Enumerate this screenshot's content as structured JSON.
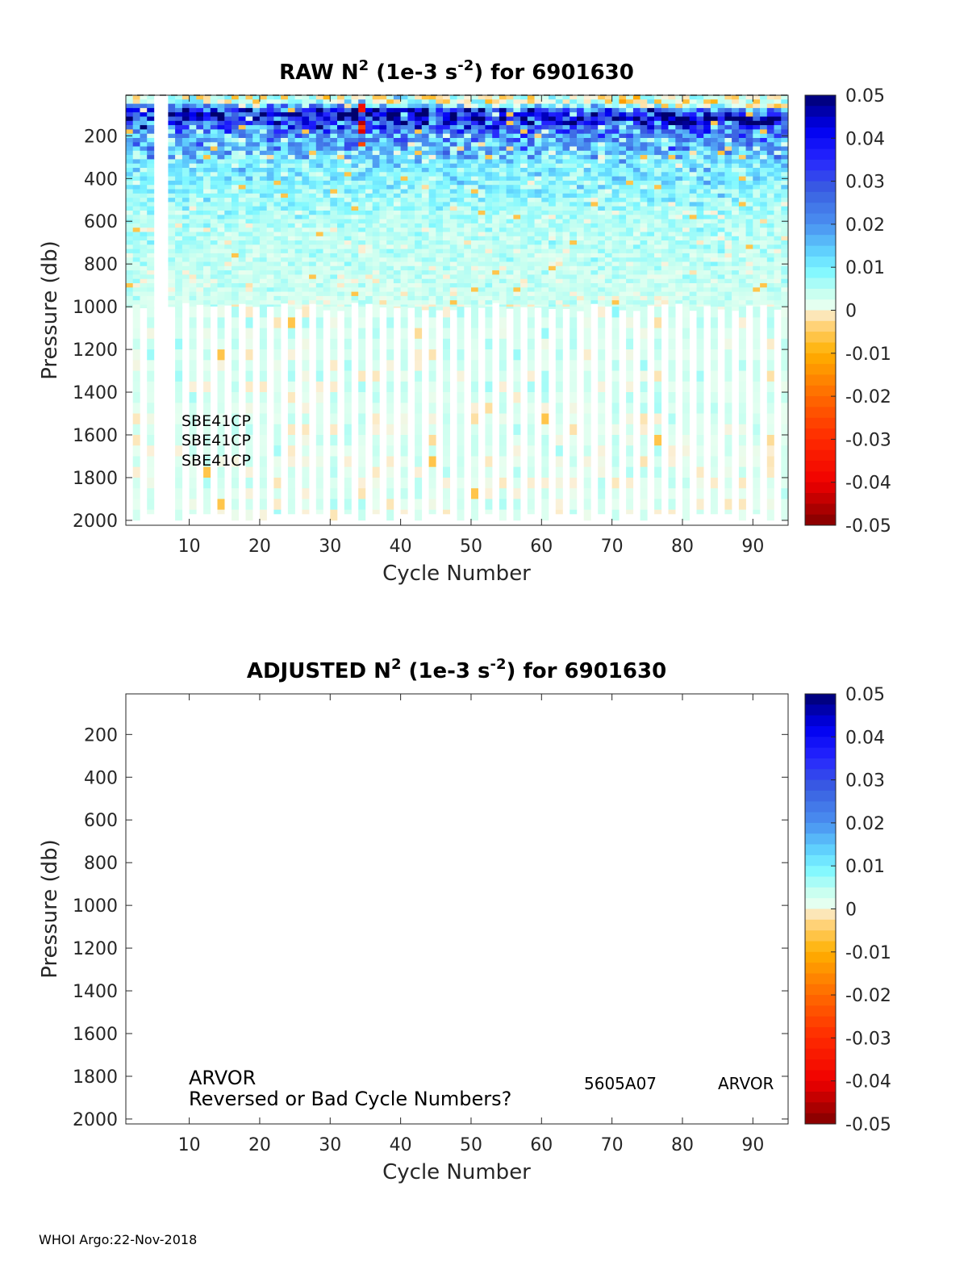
{
  "footer": "WHOI Argo:22-Nov-2018",
  "colors": {
    "colormap": [
      [
        0.05,
        "#00006e"
      ],
      [
        0.042,
        "#0000f0"
      ],
      [
        0.035,
        "#2626ff"
      ],
      [
        0.028,
        "#3a5ee0"
      ],
      [
        0.02,
        "#4a90f0"
      ],
      [
        0.013,
        "#63d8ff"
      ],
      [
        0.009,
        "#80f8ff"
      ],
      [
        0.004,
        "#c8fff0"
      ],
      [
        0.001,
        "#e6fff0"
      ],
      [
        0.0,
        "#fbf0d8"
      ],
      [
        -0.004,
        "#ffd070"
      ],
      [
        -0.01,
        "#ffb000"
      ],
      [
        -0.02,
        "#ff6a00"
      ],
      [
        -0.03,
        "#ff2a00"
      ],
      [
        -0.04,
        "#f00000"
      ],
      [
        -0.05,
        "#800000"
      ]
    ]
  },
  "chart_data": [
    {
      "type": "heatmap",
      "title": {
        "a": "RAW N",
        "sup1": "2",
        "b": " (1e-3 s",
        "sup2": "-2",
        "c": ") for 6901630"
      },
      "xlabel": "Cycle Number",
      "ylabel": "Pressure (db)",
      "xlim": [
        1,
        95
      ],
      "ylim": [
        10,
        2023
      ],
      "y_reversed": true,
      "xticks": [
        "10",
        "20",
        "30",
        "40",
        "50",
        "60",
        "70",
        "80",
        "90"
      ],
      "yticks": [
        "200",
        "400",
        "600",
        "800",
        "1000",
        "1200",
        "1400",
        "1600",
        "1800",
        "2000"
      ],
      "colorbar": {
        "clim": [
          -0.05,
          0.05
        ],
        "ticks": [
          "0.05",
          "0.04",
          "0.03",
          "0.02",
          "0.01",
          "0",
          "-0.01",
          "-0.02",
          "-0.03",
          "-0.04",
          "-0.05"
        ]
      },
      "mean_profile": [
        [
          10,
          0.001
        ],
        [
          40,
          0.004
        ],
        [
          70,
          0.035
        ],
        [
          100,
          0.042
        ],
        [
          140,
          0.03
        ],
        [
          200,
          0.018
        ],
        [
          300,
          0.011
        ],
        [
          450,
          0.008
        ],
        [
          600,
          0.005
        ],
        [
          800,
          0.004
        ],
        [
          1000,
          0.003
        ],
        [
          2000,
          0.002
        ]
      ],
      "missing_cycles": [
        5,
        6
      ],
      "shallow_profile_max_pressure": 1000,
      "deep_profile_max_pressure": 2000,
      "anomaly": {
        "cycle": 34,
        "pressure_range": [
          20,
          240
        ],
        "value": -0.045
      },
      "annotations": [
        "SBE41CP",
        "SBE41CP",
        "SBE41CP"
      ]
    },
    {
      "type": "heatmap",
      "title": {
        "a": "ADJUSTED N",
        "sup1": "2",
        "b": " (1e-3 s",
        "sup2": "-2",
        "c": ") for 6901630"
      },
      "xlabel": "Cycle Number",
      "ylabel": "Pressure (db)",
      "xlim": [
        1,
        95
      ],
      "ylim": [
        10,
        2023
      ],
      "y_reversed": true,
      "xticks": [
        "10",
        "20",
        "30",
        "40",
        "50",
        "60",
        "70",
        "80",
        "90"
      ],
      "yticks": [
        "200",
        "400",
        "600",
        "800",
        "1000",
        "1200",
        "1400",
        "1600",
        "1800",
        "2000"
      ],
      "colorbar": {
        "clim": [
          -0.05,
          0.05
        ],
        "ticks": [
          "0.05",
          "0.04",
          "0.03",
          "0.02",
          "0.01",
          "0",
          "-0.01",
          "-0.02",
          "-0.03",
          "-0.04",
          "-0.05"
        ]
      },
      "annotations": [
        "ARVOR",
        "Reversed or Bad Cycle Numbers?",
        "5605A07",
        "ARVOR"
      ]
    }
  ]
}
